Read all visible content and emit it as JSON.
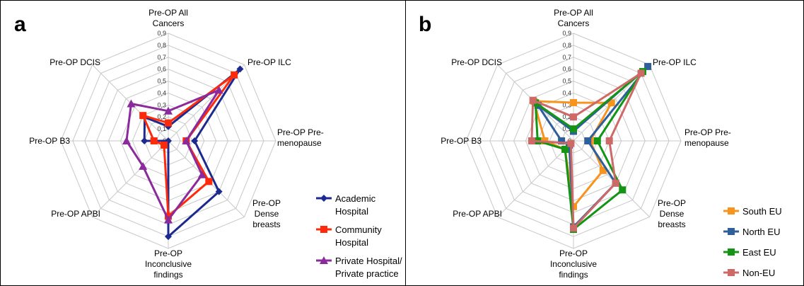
{
  "chart_data": [
    {
      "panel": "a",
      "type": "radar",
      "categories": [
        [
          "Pre-OP All",
          "Cancers"
        ],
        [
          "Pre-OP ILC"
        ],
        [
          "Pre-OP Pre-",
          "menopause"
        ],
        [
          "Pre-OP",
          "Dense",
          "breasts"
        ],
        [
          "Pre-OP",
          "Inconclusive",
          "findings"
        ],
        [
          "Pre-OP APBI"
        ],
        [
          "Pre-OP B3"
        ],
        [
          "Pre-OP DCIS"
        ]
      ],
      "ticks": [
        "0",
        "0,1",
        "0,2",
        "0,3",
        "0,4",
        "0,5",
        "0,6",
        "0,7",
        "0,8",
        "0,9"
      ],
      "rmax": 0.9,
      "grid": true,
      "legend_position": "bottom-right",
      "series": [
        {
          "name": [
            "Academic",
            "Hospital"
          ],
          "color": "#1c2a8f",
          "marker": "diamond",
          "values": [
            0.12,
            0.85,
            0.22,
            0.6,
            0.8,
            0.0,
            0.2,
            0.28
          ]
        },
        {
          "name": [
            "Community",
            "Hospital"
          ],
          "color": "#ff2a0a",
          "marker": "square",
          "values": [
            0.15,
            0.78,
            0.15,
            0.48,
            0.63,
            0.05,
            0.12,
            0.3
          ]
        },
        {
          "name": [
            "Private Hospital/",
            "Private practice"
          ],
          "color": "#8a2a9c",
          "marker": "triangle",
          "values": [
            0.25,
            0.6,
            0.15,
            0.4,
            0.66,
            0.3,
            0.35,
            0.44
          ]
        }
      ]
    },
    {
      "panel": "b",
      "type": "radar",
      "categories": [
        [
          "Pre-OP All",
          "Cancers"
        ],
        [
          "Pre-OP ILC"
        ],
        [
          "Pre-OP Pre-",
          "menopause"
        ],
        [
          "Pre-OP",
          "Dense",
          "breasts"
        ],
        [
          "Pre-OP",
          "Inconclusive",
          "findings"
        ],
        [
          "Pre-OP APBI"
        ],
        [
          "Pre-OP B3"
        ],
        [
          "Pre-OP DCIS"
        ]
      ],
      "ticks": [
        "0",
        "0,1",
        "0,2",
        "0,3",
        "0,4",
        "0,5",
        "0,6",
        "0,7",
        "0,8",
        "0,9"
      ],
      "rmax": 0.9,
      "grid": true,
      "legend_position": "bottom-right",
      "series": [
        {
          "name": [
            "South EU"
          ],
          "color": "#f7941d",
          "marker": "square",
          "values": [
            0.32,
            0.45,
            0.14,
            0.35,
            0.55,
            0.1,
            0.24,
            0.47
          ]
        },
        {
          "name": [
            "North EU"
          ],
          "color": "#2f5f9a",
          "marker": "square",
          "values": [
            0.08,
            0.88,
            0.12,
            0.5,
            0.72,
            0.05,
            0.1,
            0.42
          ]
        },
        {
          "name": [
            "East EU"
          ],
          "color": "#149414",
          "marker": "square",
          "values": [
            0.1,
            0.82,
            0.2,
            0.58,
            0.74,
            0.1,
            0.3,
            0.45
          ]
        },
        {
          "name": [
            "Non-EU"
          ],
          "color": "#cd6a68",
          "marker": "square",
          "values": [
            0.2,
            0.8,
            0.3,
            0.5,
            0.73,
            0.03,
            0.35,
            0.48
          ]
        }
      ]
    }
  ]
}
